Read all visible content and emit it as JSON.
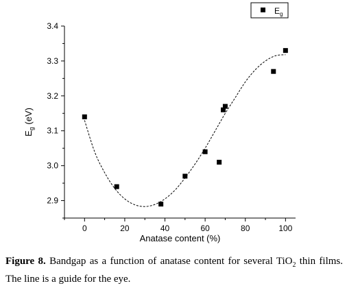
{
  "chart_data": {
    "type": "scatter",
    "xlabel": "Anatase content (%)",
    "ylabel_base": "E",
    "ylabel_sub": "g",
    "ylabel_unit": " (eV)",
    "xlim": [
      -10,
      105
    ],
    "ylim": [
      2.85,
      3.4
    ],
    "x_ticks": [
      0,
      20,
      40,
      60,
      80,
      100
    ],
    "y_ticks": [
      2.9,
      3.0,
      3.1,
      3.2,
      3.3,
      3.4
    ],
    "x_tick_labels": [
      "0",
      "20",
      "40",
      "60",
      "80",
      "100"
    ],
    "y_tick_labels": [
      "2.9",
      "3.0",
      "3.1",
      "3.2",
      "3.3",
      "3.4"
    ],
    "grid": false,
    "legend_position": "top-right",
    "series": [
      {
        "name_base": "E",
        "name_sub": "g",
        "marker": "square",
        "color": "#000000",
        "x": [
          0,
          16,
          38,
          50,
          60,
          67,
          69,
          70,
          94,
          100
        ],
        "y": [
          3.14,
          2.94,
          2.89,
          2.97,
          3.04,
          3.01,
          3.16,
          3.17,
          3.27,
          3.33
        ]
      }
    ],
    "guide_line": {
      "style": "dashed",
      "x": [
        0,
        5,
        10,
        15,
        20,
        25,
        30,
        35,
        40,
        45,
        50,
        55,
        60,
        65,
        70,
        75,
        80,
        85,
        90,
        95,
        100
      ],
      "y": [
        3.13,
        3.04,
        2.98,
        2.935,
        2.905,
        2.888,
        2.883,
        2.889,
        2.905,
        2.93,
        2.965,
        3.005,
        3.05,
        3.1,
        3.15,
        3.195,
        3.24,
        3.275,
        3.3,
        3.315,
        3.318
      ]
    }
  },
  "caption": {
    "label": "Figure 8.",
    "text_before": " Bandgap as a function of anatase content for several TiO",
    "text_sub": "2",
    "text_after": " thin films. The line is a guide for the eye."
  }
}
